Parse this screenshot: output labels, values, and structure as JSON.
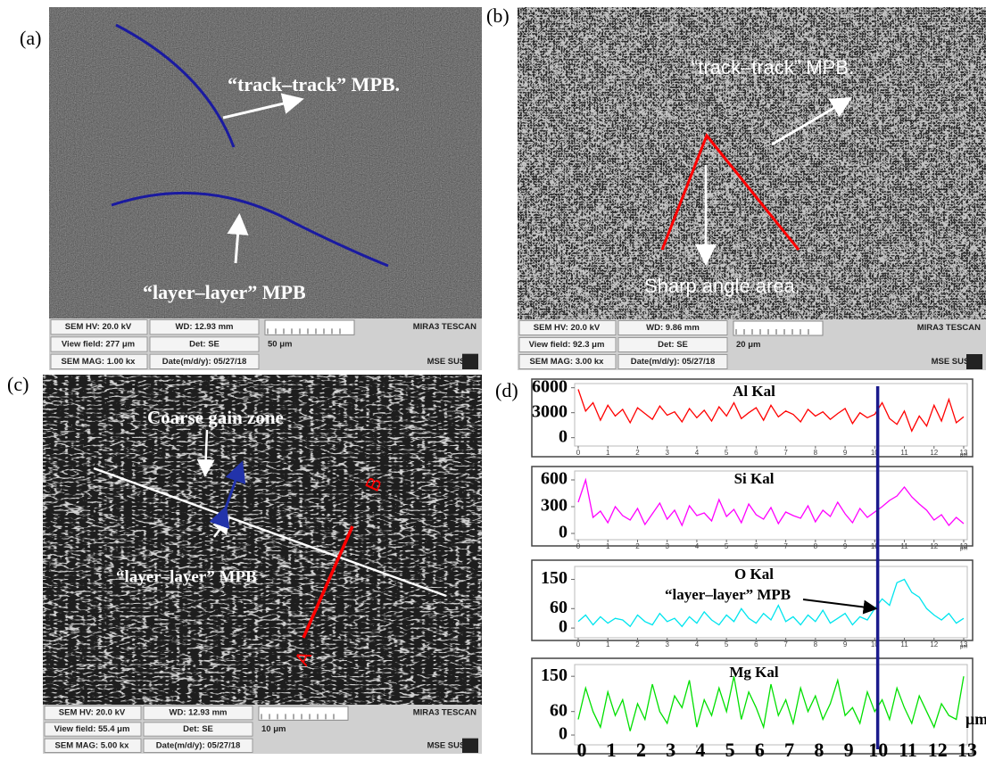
{
  "panels": [
    {
      "label": "(a)",
      "annotations": [
        "“track–track” MPB.",
        "“layer–layer” MPB"
      ],
      "sem_info": [
        [
          "SEM HV: 20.0 kV",
          "WD: 12.93 mm",
          "MIRA3 TESCAN"
        ],
        [
          "View field: 277 μm",
          "Det: SE",
          "50 μm"
        ],
        [
          "SEM MAG: 1.00 kx",
          "Date(m/d/y): 05/27/18",
          "MSE SUSTC"
        ]
      ]
    },
    {
      "label": "(b)",
      "annotations": [
        "“track–track” MPB.",
        "Sharp angle area."
      ],
      "sem_info": [
        [
          "SEM HV: 20.0 kV",
          "WD: 9.86 mm",
          "MIRA3 TESCAN"
        ],
        [
          "View field: 92.3 μm",
          "Det: SE",
          "20 μm"
        ],
        [
          "SEM MAG: 3.00 kx",
          "Date(m/d/y): 05/27/18",
          "MSE SUSTC"
        ]
      ]
    },
    {
      "label": "(c)",
      "annotations": [
        "Coarse gain zone",
        "“layer–layer” MPB",
        "A",
        "B"
      ],
      "sem_info": [
        [
          "SEM HV: 20.0 kV",
          "WD: 12.93 mm",
          "MIRA3 TESCAN"
        ],
        [
          "View field: 55.4 μm",
          "Det: SE",
          "10 μm"
        ],
        [
          "SEM MAG: 5.00 kx",
          "Date(m/d/y): 05/27/18",
          "MSE SUSTC"
        ]
      ]
    }
  ],
  "panel_d_label": "(d)",
  "chart_data": [
    {
      "type": "line",
      "title": "Al Kal",
      "color": "#ff0000",
      "xlabel": "μm",
      "xlim": [
        0,
        13
      ],
      "xticks": [
        0,
        1,
        2,
        3,
        4,
        5,
        6,
        7,
        8,
        9,
        10,
        11,
        12,
        13
      ],
      "ylim": [
        -1000,
        6500
      ],
      "yticks": [
        0,
        3000,
        6000
      ],
      "marker_x": 10.1,
      "x": [
        0,
        0.25,
        0.5,
        0.75,
        1,
        1.25,
        1.5,
        1.75,
        2,
        2.25,
        2.5,
        2.75,
        3,
        3.25,
        3.5,
        3.75,
        4,
        4.25,
        4.5,
        4.75,
        5,
        5.25,
        5.5,
        5.75,
        6,
        6.25,
        6.5,
        6.75,
        7,
        7.25,
        7.5,
        7.75,
        8,
        8.25,
        8.5,
        8.75,
        9,
        9.25,
        9.5,
        9.75,
        10,
        10.25,
        10.5,
        10.75,
        11,
        11.25,
        11.5,
        11.75,
        12,
        12.25,
        12.5,
        12.75,
        13
      ],
      "values": [
        5800,
        3200,
        4200,
        2100,
        3900,
        2600,
        3400,
        1800,
        3600,
        2900,
        2200,
        3800,
        2700,
        3100,
        1900,
        3500,
        2400,
        3300,
        2000,
        3700,
        2600,
        4200,
        2300,
        3000,
        3600,
        2100,
        3900,
        2500,
        3200,
        2800,
        1900,
        3400,
        2600,
        3100,
        2200,
        2900,
        3500,
        1700,
        3000,
        2400,
        2800,
        4200,
        2300,
        1600,
        3200,
        800,
        2600,
        1400,
        3900,
        2000,
        4600,
        1800,
        2500
      ]
    },
    {
      "type": "line",
      "title": "Si Kal",
      "color": "#ff00ff",
      "xlabel": "μm",
      "xlim": [
        0,
        13
      ],
      "xticks": [
        0,
        1,
        2,
        3,
        4,
        5,
        6,
        7,
        8,
        9,
        10,
        11,
        12,
        13
      ],
      "ylim": [
        -70,
        700
      ],
      "yticks": [
        0,
        300,
        600
      ],
      "marker_x": 10.1,
      "x": [
        0,
        0.25,
        0.5,
        0.75,
        1,
        1.25,
        1.5,
        1.75,
        2,
        2.25,
        2.5,
        2.75,
        3,
        3.25,
        3.5,
        3.75,
        4,
        4.25,
        4.5,
        4.75,
        5,
        5.25,
        5.5,
        5.75,
        6,
        6.25,
        6.5,
        6.75,
        7,
        7.25,
        7.5,
        7.75,
        8,
        8.25,
        8.5,
        8.75,
        9,
        9.25,
        9.5,
        9.75,
        10,
        10.25,
        10.5,
        10.75,
        11,
        11.25,
        11.5,
        11.75,
        12,
        12.25,
        12.5,
        12.75,
        13
      ],
      "values": [
        350,
        600,
        180,
        250,
        120,
        300,
        200,
        150,
        280,
        100,
        220,
        340,
        160,
        260,
        90,
        310,
        200,
        230,
        140,
        380,
        190,
        270,
        120,
        330,
        210,
        160,
        290,
        110,
        240,
        200,
        170,
        310,
        130,
        260,
        190,
        350,
        220,
        120,
        280,
        180,
        240,
        300,
        370,
        420,
        520,
        410,
        330,
        260,
        150,
        210,
        90,
        180,
        110
      ]
    },
    {
      "type": "line",
      "title": "O  Kal",
      "color": "#00e5ee",
      "xlabel": "μm",
      "xlim": [
        0,
        13
      ],
      "xticks": [
        0,
        1,
        2,
        3,
        4,
        5,
        6,
        7,
        8,
        9,
        10,
        11,
        12,
        13
      ],
      "ylim": [
        -30,
        190
      ],
      "yticks": [
        0,
        60,
        150
      ],
      "marker_x": 10.1,
      "annotation": "“layer–layer” MPB",
      "x": [
        0,
        0.25,
        0.5,
        0.75,
        1,
        1.25,
        1.5,
        1.75,
        2,
        2.25,
        2.5,
        2.75,
        3,
        3.25,
        3.5,
        3.75,
        4,
        4.25,
        4.5,
        4.75,
        5,
        5.25,
        5.5,
        5.75,
        6,
        6.25,
        6.5,
        6.75,
        7,
        7.25,
        7.5,
        7.75,
        8,
        8.25,
        8.5,
        8.75,
        9,
        9.25,
        9.5,
        9.75,
        10,
        10.25,
        10.5,
        10.75,
        11,
        11.25,
        11.5,
        11.75,
        12,
        12.25,
        12.5,
        12.75,
        13
      ],
      "values": [
        20,
        40,
        10,
        35,
        15,
        30,
        25,
        5,
        40,
        20,
        10,
        45,
        20,
        30,
        5,
        35,
        15,
        50,
        25,
        10,
        40,
        20,
        60,
        30,
        15,
        45,
        25,
        70,
        20,
        35,
        10,
        40,
        20,
        55,
        15,
        30,
        45,
        10,
        35,
        25,
        60,
        90,
        70,
        140,
        150,
        110,
        95,
        60,
        40,
        25,
        45,
        15,
        30
      ]
    },
    {
      "type": "line",
      "title": "Mg Kal",
      "color": "#00e000",
      "xlabel": "μm",
      "xlim": [
        0,
        13
      ],
      "xticks": [
        0,
        1,
        2,
        3,
        4,
        5,
        6,
        7,
        8,
        9,
        10,
        11,
        12,
        13
      ],
      "ylim": [
        -25,
        180
      ],
      "yticks": [
        0,
        60,
        150
      ],
      "marker_x": 10.1,
      "x": [
        0,
        0.25,
        0.5,
        0.75,
        1,
        1.25,
        1.5,
        1.75,
        2,
        2.25,
        2.5,
        2.75,
        3,
        3.25,
        3.5,
        3.75,
        4,
        4.25,
        4.5,
        4.75,
        5,
        5.25,
        5.5,
        5.75,
        6,
        6.25,
        6.5,
        6.75,
        7,
        7.25,
        7.5,
        7.75,
        8,
        8.25,
        8.5,
        8.75,
        9,
        9.25,
        9.5,
        9.75,
        10,
        10.25,
        10.5,
        10.75,
        11,
        11.25,
        11.5,
        11.75,
        12,
        12.25,
        12.5,
        12.75,
        13
      ],
      "values": [
        40,
        120,
        60,
        20,
        110,
        50,
        90,
        10,
        80,
        40,
        130,
        60,
        30,
        100,
        70,
        140,
        20,
        90,
        50,
        120,
        60,
        150,
        40,
        110,
        70,
        20,
        130,
        50,
        90,
        30,
        120,
        60,
        100,
        40,
        80,
        140,
        50,
        70,
        30,
        110,
        60,
        90,
        40,
        120,
        70,
        30,
        100,
        60,
        20,
        80,
        50,
        40,
        150
      ]
    }
  ]
}
